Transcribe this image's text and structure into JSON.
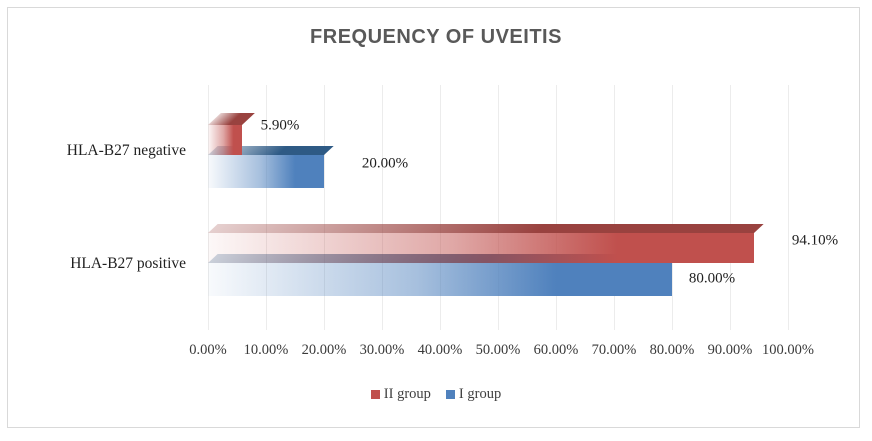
{
  "title": "FREQUENCY OF UVEITIS",
  "chart_data": {
    "type": "bar",
    "orientation": "horizontal",
    "style": "3d-gradient-bars",
    "title": "FREQUENCY OF UVEITIS",
    "categories": [
      "HLA-B27 negative",
      "HLA-B27 positive"
    ],
    "series": [
      {
        "name": "II group",
        "color": "#c0504d",
        "dark_color": "#99423f",
        "values": [
          5.9,
          94.1
        ],
        "value_labels": [
          "5.90%",
          "94.10%"
        ]
      },
      {
        "name": "I group",
        "color": "#4f81bd",
        "dark_color": "#2e5a85",
        "values": [
          20.0,
          80.0
        ],
        "value_labels": [
          "20.00%",
          "80.00%"
        ]
      }
    ],
    "x_axis": {
      "min": 0,
      "max": 100,
      "tick_step": 10,
      "tick_labels": [
        "0.00%",
        "10.00%",
        "20.00%",
        "30.00%",
        "40.00%",
        "50.00%",
        "60.00%",
        "70.00%",
        "80.00%",
        "90.00%",
        "100.00%"
      ]
    },
    "grid": true,
    "legend_position": "bottom",
    "colors": {
      "title_text": "#595959",
      "axis_text": "#3a3a3a",
      "label_text": "#1f1f1f",
      "gridline": "#ececec",
      "frame_border": "#d9d9d9"
    }
  }
}
